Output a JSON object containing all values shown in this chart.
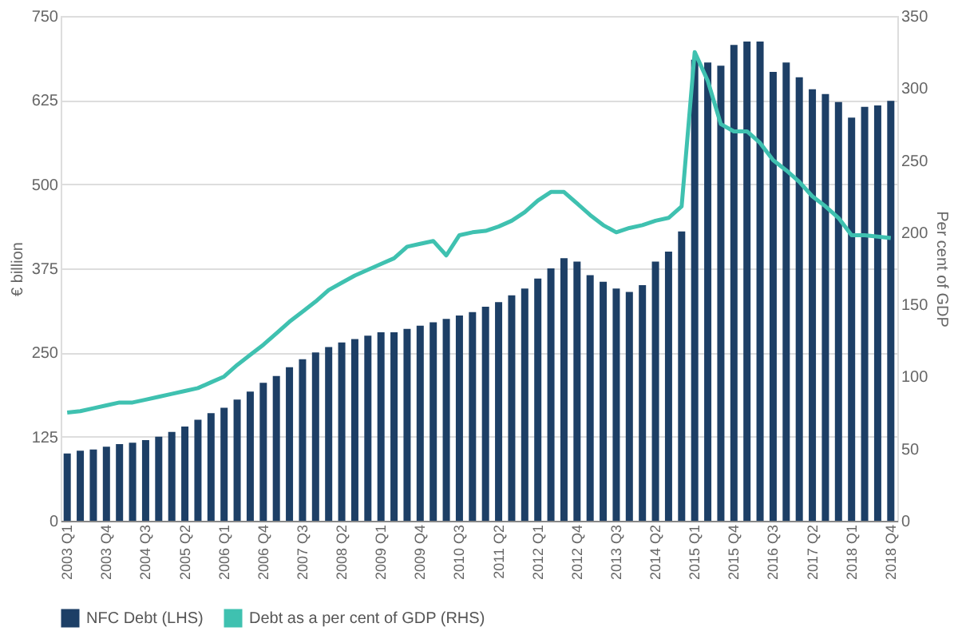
{
  "chart_data": {
    "type": "bar",
    "ylabel": "€ billion",
    "y2label": "Per cent of GDP",
    "categories": [
      "2003 Q1",
      null,
      null,
      "2003 Q4",
      null,
      null,
      "2004 Q3",
      null,
      null,
      "2005 Q2",
      null,
      null,
      "2006 Q1",
      null,
      null,
      "2006 Q4",
      null,
      null,
      "2007 Q3",
      null,
      null,
      "2008 Q2",
      null,
      null,
      "2009 Q1",
      null,
      null,
      "2009 Q4",
      null,
      null,
      "2010 Q3",
      null,
      null,
      "2011 Q2",
      null,
      null,
      "2012 Q1",
      null,
      null,
      "2012 Q4",
      null,
      null,
      "2013 Q3",
      null,
      null,
      "2014 Q2",
      null,
      null,
      "2015 Q1",
      null,
      null,
      "2015 Q4",
      null,
      null,
      "2016 Q3",
      null,
      null,
      "2017 Q2",
      null,
      null,
      "2018 Q1",
      null,
      null,
      "2018 Q4"
    ],
    "series": [
      {
        "name": "NFC Debt (LHS)",
        "color": "#1d3f66",
        "values": [
          100,
          104,
          106,
          110,
          114,
          116,
          120,
          125,
          132,
          140,
          150,
          160,
          168,
          180,
          192,
          205,
          215,
          228,
          240,
          250,
          258,
          265,
          270,
          275,
          280,
          280,
          285,
          290,
          295,
          300,
          305,
          310,
          318,
          325,
          335,
          345,
          360,
          375,
          390,
          385,
          365,
          355,
          345,
          340,
          350,
          385,
          400,
          430,
          685,
          681,
          676,
          707,
          712,
          712,
          667,
          681,
          659,
          641,
          634,
          622,
          599,
          615,
          617,
          624
        ]
      },
      {
        "name": "Debt as a per cent of GDP (RHS)",
        "type": "line",
        "axis": "y2",
        "color": "#3fc1b0",
        "values": [
          75,
          76,
          78,
          80,
          82,
          82,
          84,
          86,
          88,
          90,
          92,
          96,
          100,
          108,
          115,
          122,
          130,
          138,
          145,
          152,
          160,
          165,
          170,
          174,
          178,
          182,
          190,
          192,
          194,
          184,
          198,
          200,
          201,
          204,
          208,
          214,
          222,
          228,
          228,
          220,
          212,
          205,
          200,
          203,
          205,
          208,
          210,
          218,
          325,
          305,
          275,
          270,
          270,
          262,
          250,
          243,
          235,
          225,
          218,
          210,
          198,
          198,
          197,
          196
        ]
      }
    ],
    "ylim": [
      0,
      750
    ],
    "yticks": [
      0,
      125,
      250,
      375,
      500,
      625,
      750
    ],
    "y2lim": [
      0,
      350
    ],
    "y2ticks": [
      0,
      50,
      100,
      150,
      200,
      250,
      300,
      350
    ],
    "grid": "y",
    "legend": "bottom"
  }
}
